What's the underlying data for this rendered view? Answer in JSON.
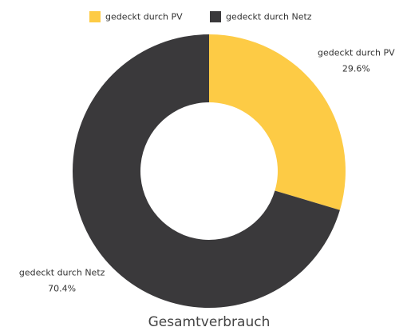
{
  "chart_data": {
    "type": "donut",
    "title": "Gesamtverbrauch",
    "categories": [
      "gedeckt durch PV",
      "gedeckt durch Netz"
    ],
    "values": [
      29.6,
      70.4
    ],
    "value_labels": [
      "29.6%",
      "70.4%"
    ],
    "colors": [
      "#fdcb45",
      "#3a393b"
    ],
    "legend": "top"
  }
}
